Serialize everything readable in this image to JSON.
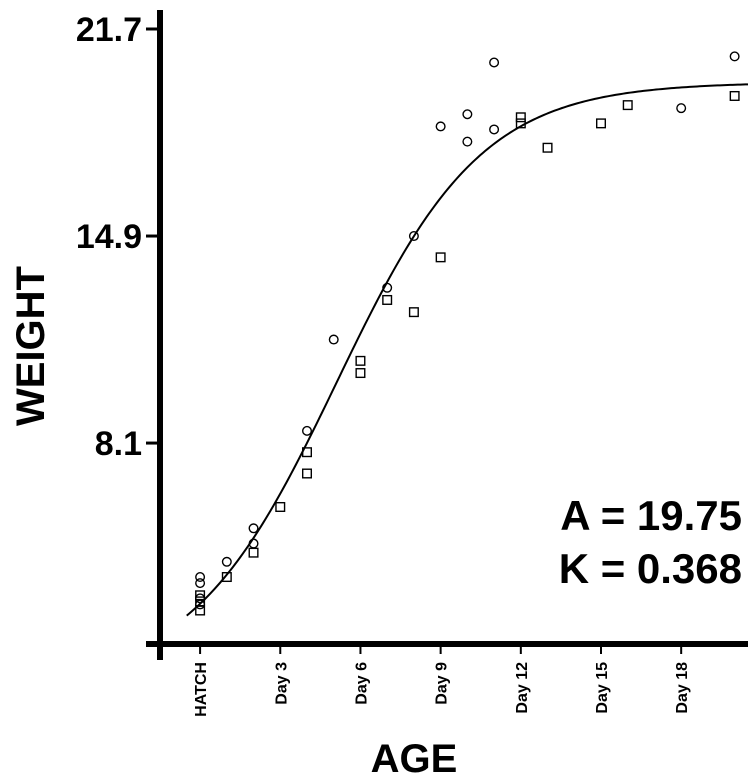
{
  "chart_data": {
    "type": "scatter",
    "xlabel": "AGE",
    "ylabel": "WEIGHT",
    "xlim": [
      -1.5,
      20.5
    ],
    "ylim": [
      1.5,
      21.7
    ],
    "yticks": [
      8.1,
      14.9,
      21.7
    ],
    "xticks": [
      {
        "x": 0,
        "label": "HATCH"
      },
      {
        "x": 3,
        "label": "Day 3"
      },
      {
        "x": 6,
        "label": "Day 6"
      },
      {
        "x": 9,
        "label": "Day 9"
      },
      {
        "x": 12,
        "label": "Day 12"
      },
      {
        "x": 15,
        "label": "Day 15"
      },
      {
        "x": 18,
        "label": "Day 18"
      }
    ],
    "grid": false,
    "series": [
      {
        "marker": "circle",
        "points": [
          {
            "x": 0,
            "y": 3.7
          },
          {
            "x": 0,
            "y": 3.5
          },
          {
            "x": 0,
            "y": 3.0
          },
          {
            "x": 0,
            "y": 2.8
          },
          {
            "x": 1,
            "y": 4.2
          },
          {
            "x": 2,
            "y": 5.3
          },
          {
            "x": 2,
            "y": 4.8
          },
          {
            "x": 4,
            "y": 8.5
          },
          {
            "x": 5,
            "y": 11.5
          },
          {
            "x": 7,
            "y": 13.2
          },
          {
            "x": 8,
            "y": 14.9
          },
          {
            "x": 9,
            "y": 18.5
          },
          {
            "x": 10,
            "y": 18.0
          },
          {
            "x": 10,
            "y": 18.9
          },
          {
            "x": 11,
            "y": 20.6
          },
          {
            "x": 11,
            "y": 18.4
          },
          {
            "x": 18,
            "y": 19.1
          },
          {
            "x": 20,
            "y": 20.8
          }
        ]
      },
      {
        "marker": "square",
        "points": [
          {
            "x": 0,
            "y": 2.6
          },
          {
            "x": 0,
            "y": 2.9
          },
          {
            "x": 0,
            "y": 3.1
          },
          {
            "x": 1,
            "y": 3.7
          },
          {
            "x": 2,
            "y": 4.5
          },
          {
            "x": 3,
            "y": 6.0
          },
          {
            "x": 4,
            "y": 7.1
          },
          {
            "x": 4,
            "y": 7.8
          },
          {
            "x": 6,
            "y": 10.4
          },
          {
            "x": 6,
            "y": 10.8
          },
          {
            "x": 7,
            "y": 12.8
          },
          {
            "x": 8,
            "y": 12.4
          },
          {
            "x": 9,
            "y": 14.2
          },
          {
            "x": 12,
            "y": 18.6
          },
          {
            "x": 12,
            "y": 18.8
          },
          {
            "x": 13,
            "y": 17.8
          },
          {
            "x": 15,
            "y": 18.6
          },
          {
            "x": 16,
            "y": 19.2
          },
          {
            "x": 20,
            "y": 19.5
          }
        ]
      }
    ],
    "fit_curve": {
      "type": "logistic",
      "A": 19.75,
      "K": 0.368,
      "x0": 5.1,
      "offset": 0.2
    },
    "annotations": [
      "A = 19.75",
      "K = 0.368"
    ]
  }
}
